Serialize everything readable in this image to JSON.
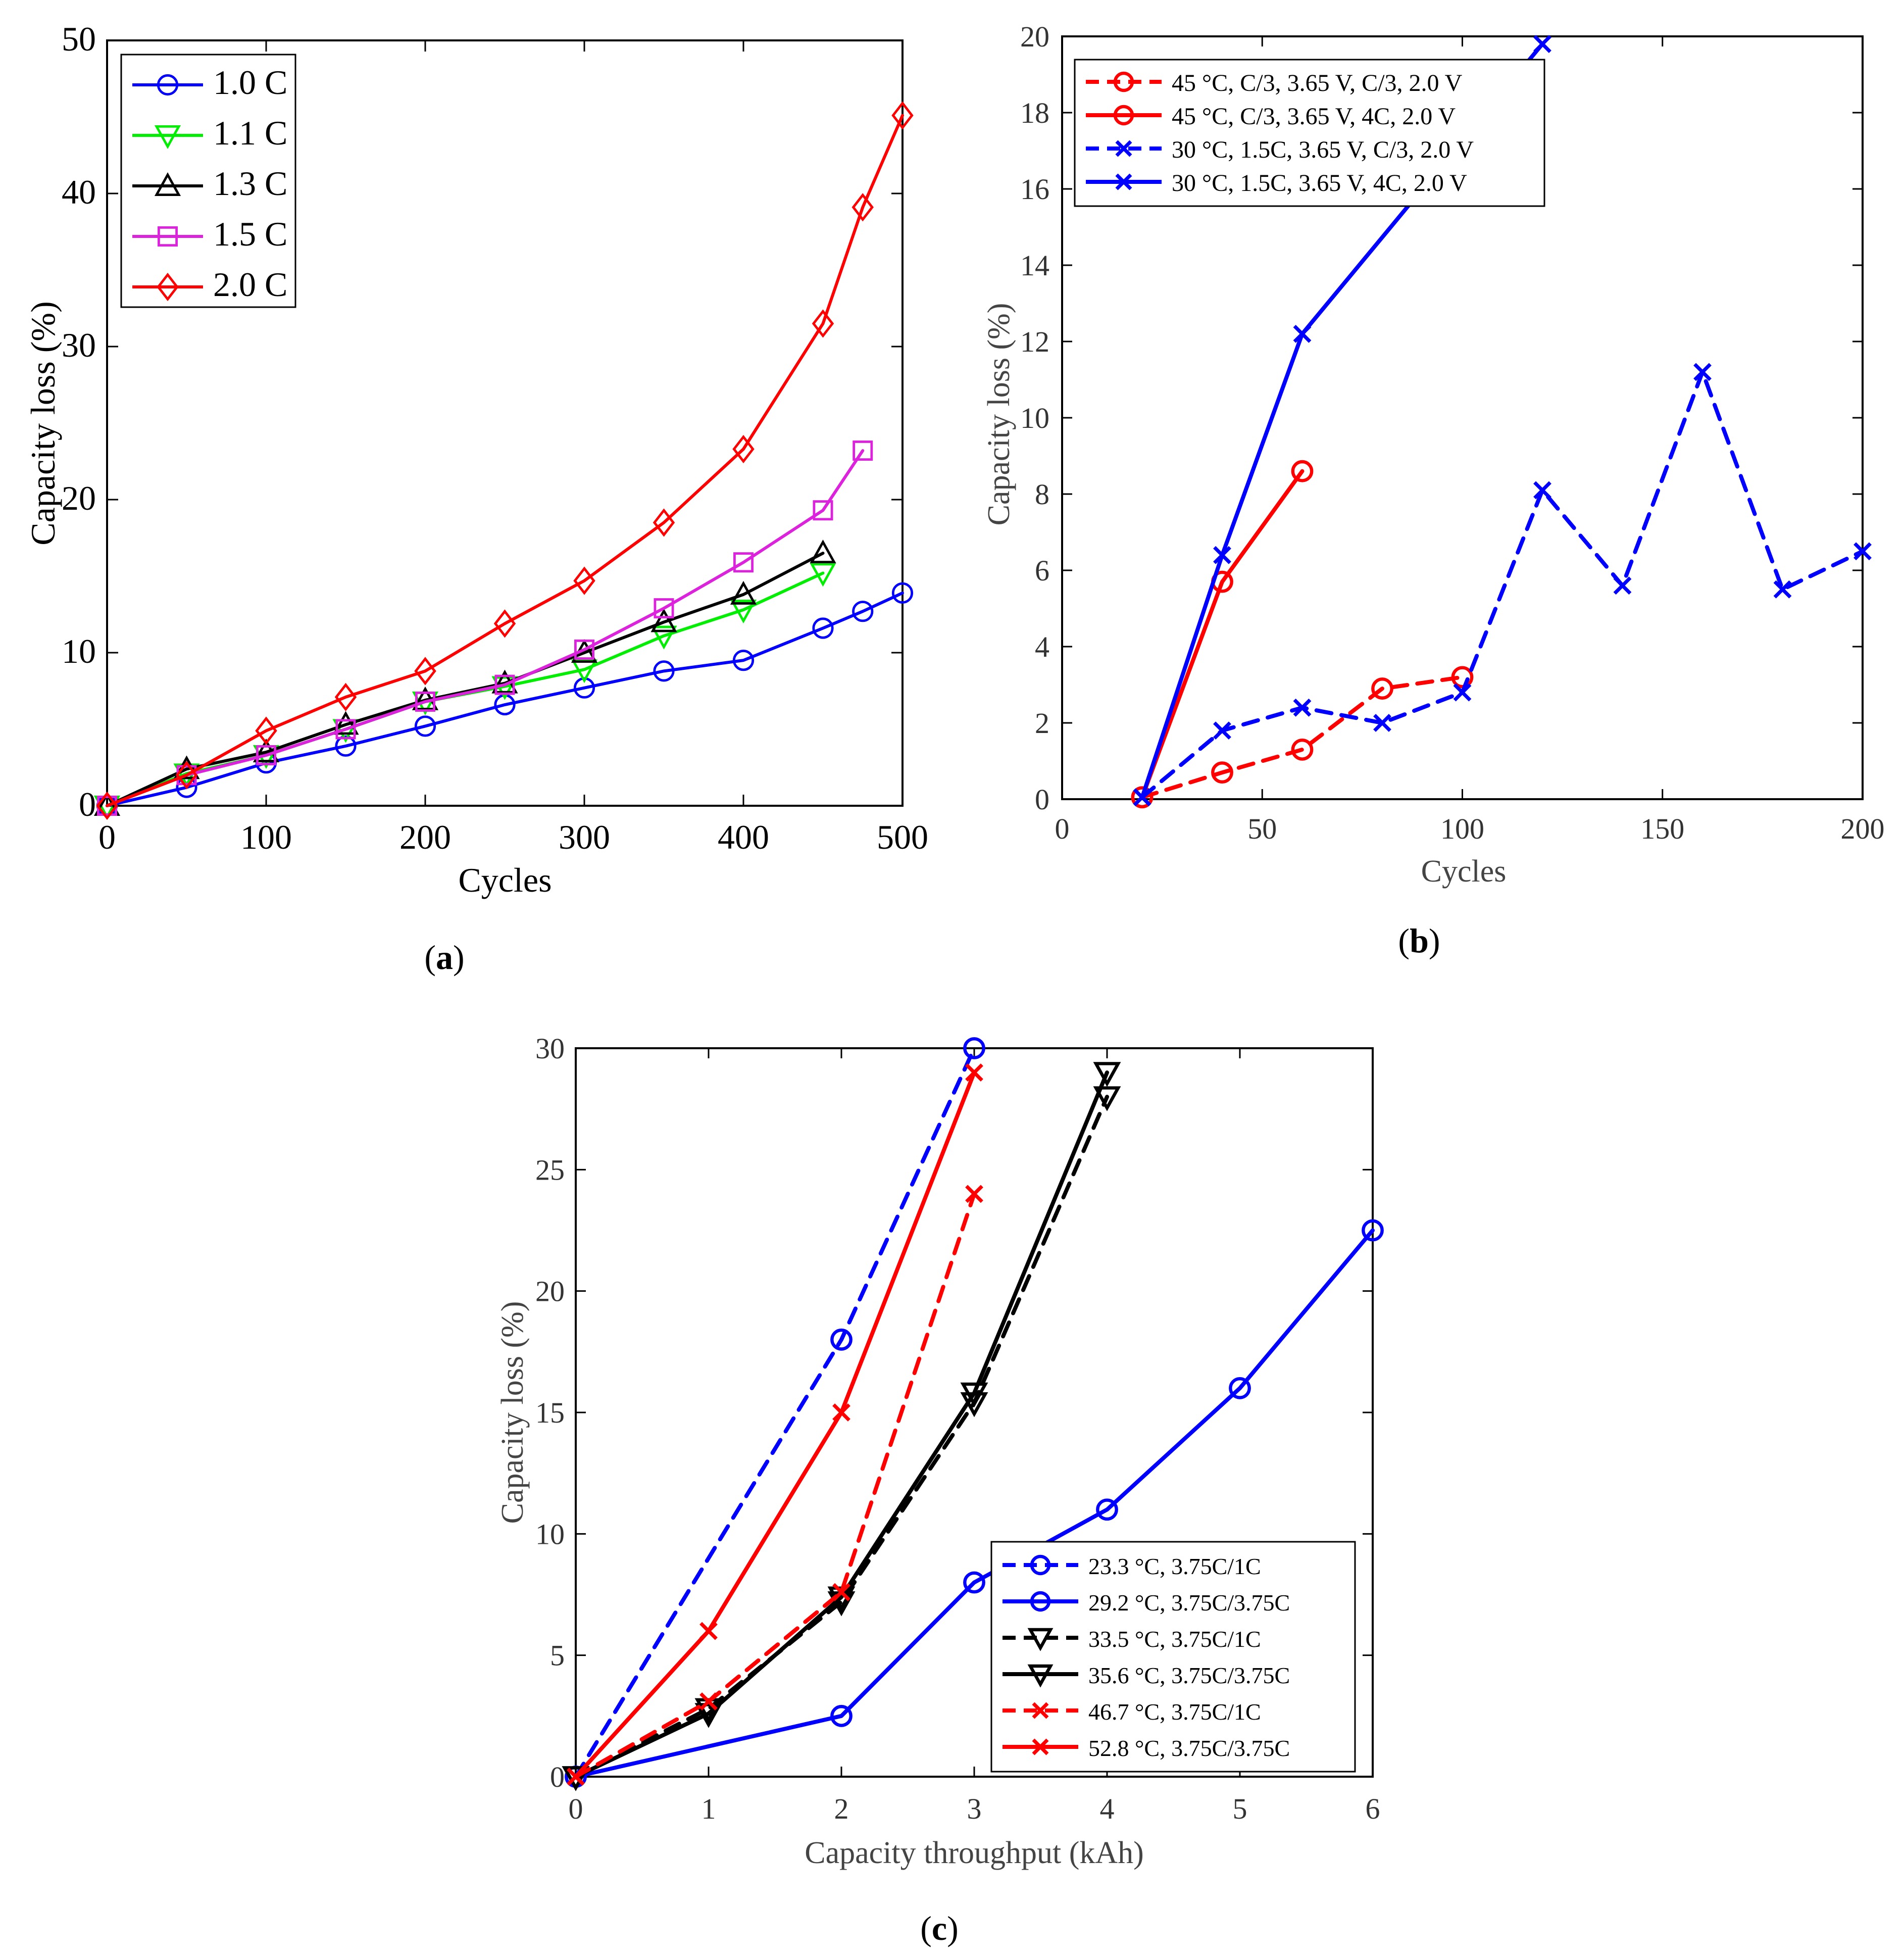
{
  "chart_data": [
    {
      "type": "line",
      "panel_label": "(a)",
      "panel_letter": "a",
      "xlabel": "Cycles",
      "ylabel": "Capacity loss (%)",
      "xlim": [
        0,
        500
      ],
      "ylim": [
        0,
        50
      ],
      "xticks": [
        0,
        100,
        200,
        300,
        400,
        500
      ],
      "yticks": [
        0,
        10,
        20,
        30,
        40,
        50
      ],
      "legend_position": "top-left",
      "grid": false,
      "series": [
        {
          "name": "1.0 C",
          "color": "#0000ff",
          "dash": "solid",
          "marker": "circle",
          "x": [
            0,
            50,
            100,
            150,
            200,
            250,
            300,
            350,
            400,
            450,
            475,
            500
          ],
          "y": [
            0,
            1.2,
            2.8,
            3.9,
            5.2,
            6.6,
            7.7,
            8.8,
            9.5,
            11.6,
            12.7,
            13.9
          ]
        },
        {
          "name": "1.1 C",
          "color": "#00ee00",
          "dash": "solid",
          "marker": "triangle-down",
          "x": [
            0,
            50,
            100,
            150,
            200,
            250,
            300,
            350,
            400,
            450
          ],
          "y": [
            0,
            2.1,
            3.3,
            5.0,
            6.8,
            7.8,
            8.9,
            11.1,
            12.8,
            15.2
          ]
        },
        {
          "name": "1.3 C",
          "color": "#000000",
          "dash": "solid",
          "marker": "triangle-up",
          "x": [
            0,
            50,
            100,
            150,
            200,
            250,
            300,
            350,
            400,
            450
          ],
          "y": [
            0,
            2.4,
            3.5,
            5.3,
            6.9,
            8.0,
            10.0,
            12.0,
            13.8,
            16.5
          ]
        },
        {
          "name": "1.5 C",
          "color": "#dd22dd",
          "dash": "solid",
          "marker": "square",
          "x": [
            0,
            50,
            100,
            150,
            200,
            250,
            300,
            350,
            400,
            450,
            475
          ],
          "y": [
            0,
            2.0,
            3.3,
            5.0,
            6.8,
            7.9,
            10.2,
            12.9,
            15.9,
            19.3,
            23.2
          ]
        },
        {
          "name": "2.0 C",
          "color": "#ff0000",
          "dash": "solid",
          "marker": "diamond",
          "x": [
            0,
            50,
            100,
            150,
            200,
            250,
            300,
            350,
            400,
            450,
            475,
            500
          ],
          "y": [
            0,
            2.0,
            4.9,
            7.1,
            8.8,
            11.9,
            14.7,
            18.5,
            23.3,
            31.5,
            39.1,
            45.1
          ]
        }
      ]
    },
    {
      "type": "line",
      "panel_label": "(b)",
      "panel_letter": "b",
      "xlabel": "Cycles",
      "ylabel": "Capacity loss (%)",
      "xlim": [
        0,
        200
      ],
      "ylim": [
        0,
        20
      ],
      "xticks": [
        0,
        50,
        100,
        150,
        200
      ],
      "yticks": [
        0,
        2,
        4,
        6,
        8,
        10,
        12,
        14,
        16,
        18,
        20
      ],
      "legend_position": "top-left",
      "grid": false,
      "series": [
        {
          "name": "45 °C, C/3, 3.65 V, C/3, 2.0 V",
          "color": "#ff0000",
          "dash": "dashed",
          "marker": "circle",
          "x": [
            20,
            40,
            60,
            80,
            100
          ],
          "y": [
            0.05,
            0.7,
            1.3,
            2.9,
            3.2
          ]
        },
        {
          "name": "45 °C, C/3, 3.65 V, 4C, 2.0 V",
          "color": "#ff0000",
          "dash": "solid",
          "marker": "circle",
          "x": [
            20,
            40,
            60
          ],
          "y": [
            0.05,
            5.7,
            8.6
          ]
        },
        {
          "name": "30 °C, 1.5C, 3.65 V, C/3, 2.0 V",
          "color": "#0000ff",
          "dash": "dashed",
          "marker": "x",
          "x": [
            20,
            40,
            60,
            80,
            100,
            120,
            140,
            160,
            180,
            200
          ],
          "y": [
            0.05,
            1.8,
            2.4,
            2.0,
            2.8,
            8.1,
            5.6,
            11.2,
            5.5,
            6.5
          ]
        },
        {
          "name": "30 °C, 1.5C, 3.65 V, 4C, 2.0 V",
          "color": "#0000ff",
          "dash": "solid",
          "marker": "x",
          "x": [
            20,
            40,
            60,
            120
          ],
          "y": [
            0.05,
            6.4,
            12.2,
            19.8
          ]
        }
      ]
    },
    {
      "type": "line",
      "panel_label": "(c)",
      "panel_letter": "c",
      "xlabel": "Capacity throughput (kAh)",
      "ylabel": "Capacity loss (%)",
      "xlim": [
        0,
        6
      ],
      "ylim": [
        0,
        30
      ],
      "xticks": [
        0,
        1,
        2,
        3,
        4,
        5,
        6
      ],
      "yticks": [
        0,
        5,
        10,
        15,
        20,
        25,
        30
      ],
      "legend_position": "bottom-right",
      "grid": false,
      "series": [
        {
          "name": "23.3 °C, 3.75C/1C",
          "color": "#0000ff",
          "dash": "dashed",
          "marker": "circle",
          "x": [
            0,
            2,
            3
          ],
          "y": [
            0,
            18,
            30
          ]
        },
        {
          "name": "29.2 °C, 3.75C/3.75C",
          "color": "#0000ff",
          "dash": "solid",
          "marker": "circle",
          "x": [
            0,
            2,
            3,
            4,
            5,
            6
          ],
          "y": [
            0,
            2.5,
            8.0,
            11.0,
            16.0,
            22.5
          ]
        },
        {
          "name": "33.5 °C, 3.75C/1C",
          "color": "#000000",
          "dash": "dashed",
          "marker": "triangle-down",
          "x": [
            0,
            1,
            2,
            3,
            4
          ],
          "y": [
            0,
            2.8,
            7.2,
            15.4,
            28.0
          ]
        },
        {
          "name": "35.6 °C, 3.75C/3.75C",
          "color": "#000000",
          "dash": "solid",
          "marker": "triangle-down",
          "x": [
            0,
            1,
            2,
            3,
            4
          ],
          "y": [
            0,
            2.6,
            7.4,
            15.8,
            29.0
          ]
        },
        {
          "name": "46.7 °C, 3.75C/1C",
          "color": "#ff0000",
          "dash": "dashed",
          "marker": "x",
          "x": [
            0,
            1,
            2,
            3
          ],
          "y": [
            0,
            3.1,
            7.6,
            24.0
          ]
        },
        {
          "name": "52.8 °C, 3.75C/3.75C",
          "color": "#ff0000",
          "dash": "solid",
          "marker": "x",
          "x": [
            0,
            1,
            2,
            3
          ],
          "y": [
            0,
            6.0,
            15.0,
            29.0
          ]
        }
      ]
    }
  ]
}
